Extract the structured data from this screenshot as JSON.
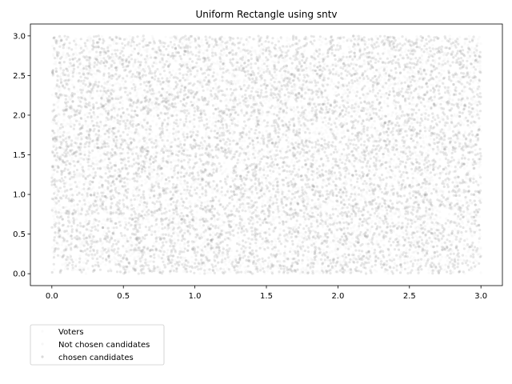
{
  "chart_data": {
    "type": "scatter",
    "title": "Uniform Rectangle using sntv",
    "xlabel": "",
    "ylabel": "",
    "xlim": [
      -0.15,
      3.15
    ],
    "ylim": [
      -0.15,
      3.15
    ],
    "xticks": [
      "0.0",
      "0.5",
      "1.0",
      "1.5",
      "2.0",
      "2.5",
      "3.0"
    ],
    "xtick_values": [
      0,
      0.5,
      1.0,
      1.5,
      2.0,
      2.5,
      3.0
    ],
    "yticks": [
      "0.0",
      "0.5",
      "1.0",
      "1.5",
      "2.0",
      "2.5",
      "3.0"
    ],
    "ytick_values": [
      0,
      0.5,
      1.0,
      1.5,
      2.0,
      2.5,
      3.0
    ],
    "grid": false,
    "legend_placement": "below-left",
    "series": [
      {
        "name": "Voters",
        "distribution": "uniform",
        "x_range": [
          0,
          3
        ],
        "y_range": [
          0,
          3
        ],
        "color": "#808080",
        "opacity": 0.04
      },
      {
        "name": "Not chosen candidates",
        "distribution": "uniform",
        "x_range": [
          0,
          3
        ],
        "y_range": [
          0,
          3
        ],
        "color": "#808080",
        "opacity": 0.18
      },
      {
        "name": "chosen candidates",
        "color": "#808080",
        "opacity": 0.3
      }
    ]
  }
}
